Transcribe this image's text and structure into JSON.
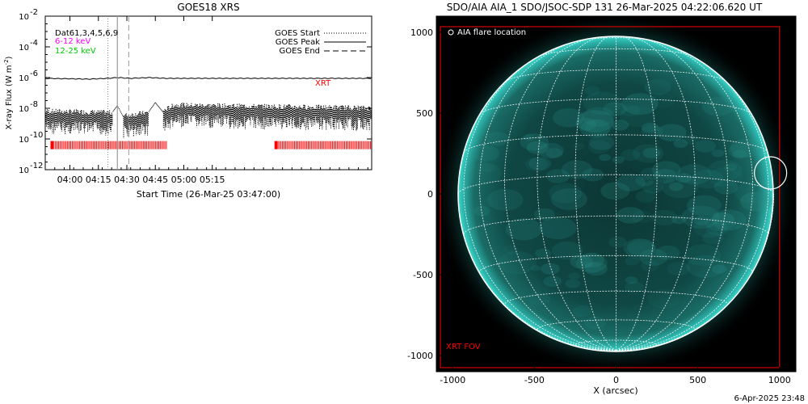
{
  "left_title": "GOES18 XRS",
  "right_title": "SDO/AIA AIA_1 SDO/JSOC-SDP 131 26-Mar-2025 04:22:06.620 UT",
  "footer_date": "6-Apr-2025 23:48",
  "colors": {
    "long_channel": "#ff00ff",
    "short_channel": "#00cc00",
    "xrt": "#ff0000",
    "solar": "#00c8c8"
  },
  "chart_data": [
    {
      "type": "line",
      "title": "GOES18 XRS",
      "ylabel": "X-ray Flux (W m⁻²)",
      "ylabel_base": "X-ray Flux (W m",
      "ylabel_sup": "-2",
      "ylabel_tail": ")",
      "xlabel": "Start Time (26-Mar-25 03:47:00)",
      "yscale": "log",
      "ylim_exp": [
        -12,
        -2
      ],
      "yticks": [
        {
          "exp": -2,
          "label": "10",
          "sup": "-2"
        },
        {
          "exp": -4,
          "label": "10",
          "sup": "-4"
        },
        {
          "exp": -6,
          "label": "10",
          "sup": "-6"
        },
        {
          "exp": -8,
          "label": "10",
          "sup": "-8"
        },
        {
          "exp": -10,
          "label": "10",
          "sup": "-10"
        },
        {
          "exp": -12,
          "label": "10",
          "sup": "-12"
        }
      ],
      "xlim_min": [
        227,
        399
      ],
      "xticks": [
        {
          "min": 240,
          "label": "04:00"
        },
        {
          "min": 255,
          "label": "04:15"
        },
        {
          "min": 270,
          "label": "04:30"
        },
        {
          "min": 285,
          "label": "04:45"
        },
        {
          "min": 300,
          "label": "05:00"
        },
        {
          "min": 315,
          "label": "05:15"
        }
      ],
      "channel_label": "Dat61,3,4,5,6,9",
      "channels": [
        {
          "name": "6-12 keV",
          "color": "#ff00ff"
        },
        {
          "name": "12-25 keV",
          "color": "#00cc00"
        }
      ],
      "legend": [
        "GOES Start",
        "GOES Peak",
        "GOES End"
      ],
      "events": {
        "start_min": 260,
        "peak_min": 265,
        "end_min": 271
      },
      "series_long": {
        "x_min": [
          227,
          250,
          260,
          265,
          272,
          282,
          290,
          399
        ],
        "y_exp": [
          -6.05,
          -6.1,
          -6.05,
          -6.0,
          -6.05,
          -6.0,
          -6.05,
          -6.05
        ]
      },
      "series_short_base": {
        "x_min": [
          227,
          262,
          265,
          268,
          281,
          285,
          289,
          295,
          399
        ],
        "y_exp": [
          -8.2,
          -8.3,
          -7.8,
          -8.5,
          -8.3,
          -7.6,
          -8.2,
          -7.8,
          -8.0
        ]
      },
      "xrt_label": "XRT",
      "xrt_coverage": [
        {
          "from_min": 230,
          "to_min": 291,
          "level_exp": -10.4
        },
        {
          "from_min": 348,
          "to_min": 399,
          "level_exp": -10.4
        }
      ]
    },
    {
      "type": "image",
      "title": "SDO/AIA AIA_1 SDO/JSOC-SDP 131 26-Mar-2025 04:22:06.620 UT",
      "xlabel": "X (arcsec)",
      "xlim": [
        -1100,
        1100
      ],
      "ylim": [
        -1100,
        1100
      ],
      "xticks": [
        -1000,
        -500,
        0,
        500,
        1000
      ],
      "yticks": [
        1000,
        500,
        0,
        -500,
        -1000
      ],
      "xtick_labels": [
        "-1000",
        "-500",
        "0",
        "500",
        "1000"
      ],
      "ytick_labels": [
        "1000",
        "500",
        "0",
        "-500",
        "-1000"
      ],
      "legend": "AIA flare location",
      "flare_location": {
        "x": 945,
        "y": 130
      },
      "solar_radius": 965,
      "xrt_fov_label": "XRT FOV",
      "xrt_fov": {
        "x0": -1075,
        "y0": -1075,
        "x1": 1000,
        "y1": 1035
      }
    }
  ]
}
